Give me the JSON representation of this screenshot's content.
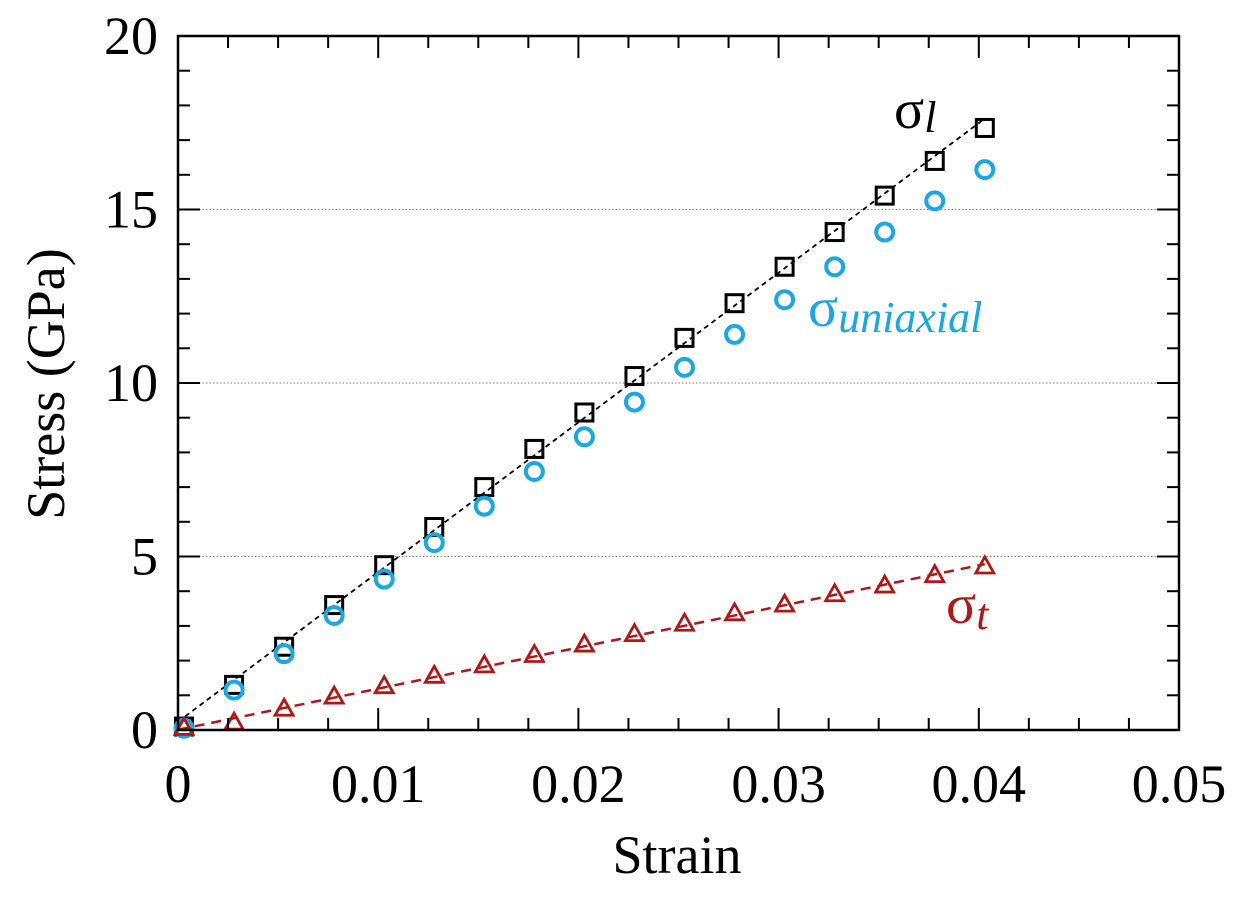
{
  "chart_data": {
    "type": "scatter",
    "title": "",
    "xlabel": "Strain",
    "ylabel": "Stress (GPa)",
    "xlim": [
      0,
      0.05
    ],
    "ylim": [
      0,
      20
    ],
    "x_ticks": [
      0,
      0.01,
      0.02,
      0.03,
      0.04,
      0.05
    ],
    "x_tick_labels": [
      "0",
      "0.01",
      "0.02",
      "0.03",
      "0.04",
      "0.05"
    ],
    "y_ticks": [
      0,
      5,
      10,
      15,
      20
    ],
    "y_tick_labels": [
      "0",
      "5",
      "10",
      "15",
      "20"
    ],
    "grid": "horizontal dotted lines at y = 5, 10, 15",
    "series": [
      {
        "label_symbol": "σ",
        "label_sub": "l",
        "color": "#000000",
        "marker": "square",
        "fit_line": true,
        "x": [
          0.0003,
          0.0028,
          0.0053,
          0.0078,
          0.0103,
          0.0128,
          0.0153,
          0.0178,
          0.0203,
          0.0228,
          0.0253,
          0.0278,
          0.0303,
          0.0328,
          0.0353,
          0.0378,
          0.0403
        ],
        "y": [
          0.1,
          1.3,
          2.4,
          3.6,
          4.75,
          5.85,
          7.0,
          8.1,
          9.15,
          10.2,
          11.3,
          12.3,
          13.35,
          14.35,
          15.4,
          16.4,
          17.35
        ]
      },
      {
        "label_symbol": "σ",
        "label_sub": "uniaxial",
        "color": "#1BA7E1",
        "marker": "circle",
        "fit_line": false,
        "x": [
          0.0003,
          0.0028,
          0.0053,
          0.0078,
          0.0103,
          0.0128,
          0.0153,
          0.0178,
          0.0203,
          0.0228,
          0.0253,
          0.0278,
          0.0303,
          0.0328,
          0.0353,
          0.0378,
          0.0403
        ],
        "y": [
          0.05,
          1.15,
          2.2,
          3.3,
          4.35,
          5.4,
          6.45,
          7.45,
          8.45,
          9.45,
          10.45,
          11.4,
          12.4,
          13.35,
          14.35,
          15.25,
          16.15
        ]
      },
      {
        "label_symbol": "σ",
        "label_sub": "t",
        "color": "#B01818",
        "marker": "triangle",
        "fit_line": true,
        "x": [
          0.0003,
          0.0028,
          0.0053,
          0.0078,
          0.0103,
          0.0128,
          0.0153,
          0.0178,
          0.0203,
          0.0228,
          0.0253,
          0.0278,
          0.0303,
          0.0328,
          0.0353,
          0.0378,
          0.0403
        ],
        "y": [
          0.05,
          0.2,
          0.6,
          0.95,
          1.25,
          1.55,
          1.85,
          2.15,
          2.45,
          2.75,
          3.05,
          3.35,
          3.6,
          3.9,
          4.15,
          4.45,
          4.7
        ]
      }
    ]
  }
}
